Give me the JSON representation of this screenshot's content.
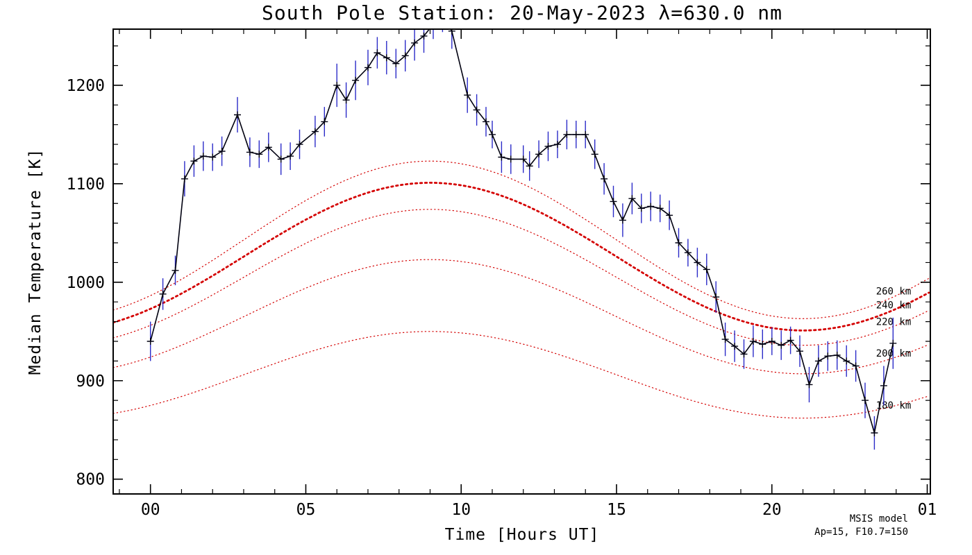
{
  "chart_data": {
    "type": "line",
    "title": "South Pole Station: 20-May-2023 λ=630.0 nm",
    "xlabel": "Time [Hours UT]",
    "ylabel": "Median Temperature [K]",
    "xlim": [
      -1.2,
      25.1
    ],
    "ylim": [
      785,
      1257
    ],
    "x_ticks": [
      {
        "value": 0,
        "label": "00"
      },
      {
        "value": 5,
        "label": "05"
      },
      {
        "value": 10,
        "label": "10"
      },
      {
        "value": 15,
        "label": "15"
      },
      {
        "value": 20,
        "label": "20"
      },
      {
        "value": 25,
        "label": "01"
      }
    ],
    "x_minor_step": 1,
    "y_ticks": [
      {
        "value": 800,
        "label": "800"
      },
      {
        "value": 900,
        "label": "900"
      },
      {
        "value": 1000,
        "label": "1000"
      },
      {
        "value": 1100,
        "label": "1100"
      },
      {
        "value": 1200,
        "label": "1200"
      }
    ],
    "y_minor_step": 20,
    "grid": false,
    "series": {
      "name": "median-temperature",
      "marker": "plus",
      "line_color": "#000010",
      "errorbar_color": "#2b2bc8",
      "x": [
        0.0,
        0.4,
        0.8,
        1.1,
        1.4,
        1.7,
        2.0,
        2.3,
        2.8,
        3.2,
        3.5,
        3.8,
        4.2,
        4.5,
        4.8,
        5.3,
        5.6,
        6.0,
        6.3,
        6.6,
        7.0,
        7.3,
        7.6,
        7.9,
        8.2,
        8.5,
        8.8,
        9.1,
        9.4,
        9.7,
        10.2,
        10.5,
        10.8,
        11.0,
        11.3,
        11.6,
        12.0,
        12.2,
        12.5,
        12.8,
        13.1,
        13.4,
        13.7,
        14.0,
        14.3,
        14.6,
        14.9,
        15.2,
        15.5,
        15.8,
        16.1,
        16.4,
        16.7,
        17.0,
        17.3,
        17.6,
        17.9,
        18.2,
        18.5,
        18.8,
        19.1,
        19.4,
        19.7,
        20.0,
        20.3,
        20.6,
        20.9,
        21.2,
        21.5,
        21.8,
        22.1,
        22.4,
        22.7,
        23.0,
        23.3,
        23.6,
        23.9
      ],
      "y": [
        940,
        988,
        1012,
        1105,
        1123,
        1128,
        1127,
        1133,
        1170,
        1132,
        1130,
        1137,
        1125,
        1128,
        1140,
        1153,
        1163,
        1200,
        1185,
        1205,
        1218,
        1233,
        1228,
        1222,
        1230,
        1243,
        1250,
        1262,
        1270,
        1255,
        1190,
        1175,
        1163,
        1150,
        1127,
        1125,
        1125,
        1118,
        1130,
        1138,
        1140,
        1150,
        1150,
        1150,
        1130,
        1105,
        1082,
        1063,
        1085,
        1075,
        1077,
        1075,
        1068,
        1040,
        1030,
        1020,
        1013,
        985,
        942,
        935,
        927,
        940,
        937,
        940,
        936,
        941,
        930,
        896,
        920,
        925,
        926,
        920,
        915,
        880,
        847,
        895,
        938
      ],
      "err": [
        20,
        16,
        15,
        18,
        16,
        15,
        14,
        15,
        18,
        15,
        14,
        15,
        16,
        14,
        15,
        16,
        15,
        22,
        18,
        20,
        18,
        16,
        17,
        15,
        16,
        18,
        17,
        15,
        16,
        18,
        18,
        16,
        15,
        14,
        16,
        15,
        14,
        15,
        14,
        15,
        14,
        15,
        14,
        14,
        15,
        16,
        16,
        17,
        16,
        15,
        15,
        14,
        15,
        15,
        14,
        15,
        16,
        16,
        17,
        16,
        15,
        16,
        15,
        14,
        15,
        14,
        16,
        18,
        16,
        15,
        15,
        16,
        16,
        18,
        17,
        20,
        26
      ]
    },
    "model_curves": [
      {
        "label": "260 km",
        "base": 1043,
        "amp": 80,
        "peak_hour": 9.0,
        "bold": false,
        "label_k": 991
      },
      {
        "label": "240 km",
        "base": 1026,
        "amp": 75,
        "peak_hour": 9.0,
        "bold": true,
        "label_k": 977
      },
      {
        "label": "220 km",
        "base": 1005,
        "amp": 69,
        "peak_hour": 9.0,
        "bold": false,
        "label_k": 960
      },
      {
        "label": "200 km",
        "base": 965,
        "amp": 58,
        "peak_hour": 9.0,
        "bold": false,
        "label_k": 928
      },
      {
        "label": "180 km",
        "base": 906,
        "amp": 44,
        "peak_hour": 9.0,
        "bold": false,
        "label_k": 875
      }
    ],
    "model_label_hour": 23.35,
    "model_color": "#d40000",
    "annotations": {
      "model_name": "MSIS model",
      "model_params": "Ap=15, F10.7=150"
    },
    "legend_position": "none"
  }
}
